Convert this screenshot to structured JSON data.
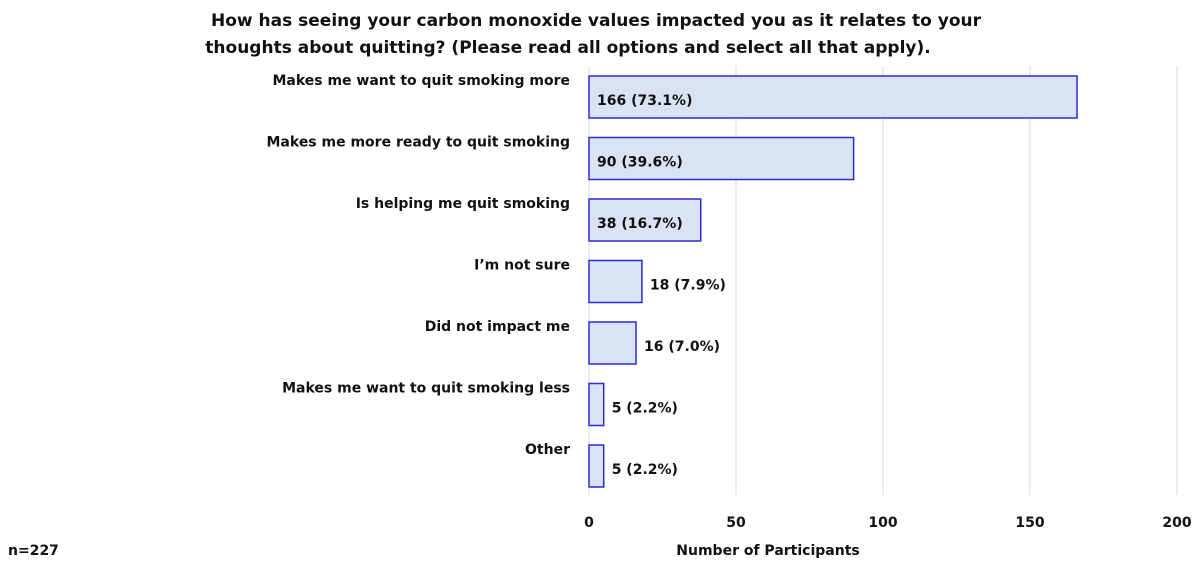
{
  "chart_data": {
    "type": "bar",
    "orientation": "horizontal",
    "title": [
      "How has seeing your carbon monoxide values impacted you as it relates to your",
      "thoughts about quitting? (Please read all options and select all that apply)."
    ],
    "categories": [
      "Makes me want to quit smoking more",
      "Makes me more ready to quit smoking",
      "Is helping me quit smoking",
      "I’m not sure",
      "Did not impact me",
      "Makes me want to quit smoking less",
      "Other"
    ],
    "values": [
      166,
      90,
      38,
      18,
      16,
      5,
      5
    ],
    "value_labels": [
      "166 (73.1%)",
      "90 (39.6%)",
      "38 (16.7%)",
      "18 (7.9%)",
      "16 (7.0%)",
      "5 (2.2%)",
      "5 (2.2%)"
    ],
    "color": "#dae3f3",
    "edge_color": "#2b2bd6",
    "x_label": "Number of Participants",
    "annotation": "n=227",
    "xlim": [
      0,
      200
    ],
    "xticks": [
      0,
      50,
      100,
      150,
      200
    ],
    "grid": true
  }
}
